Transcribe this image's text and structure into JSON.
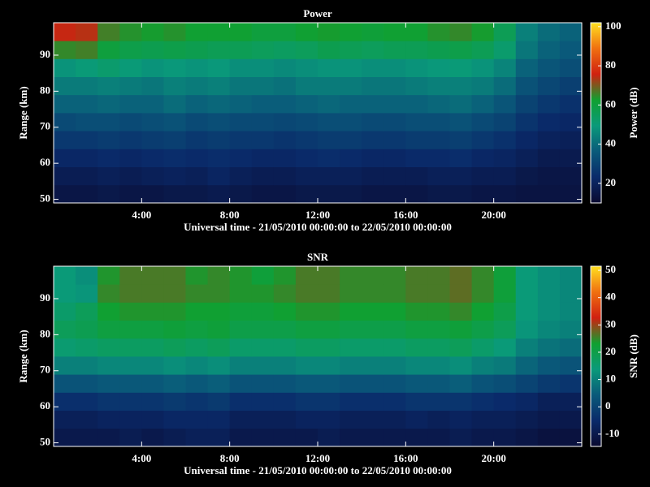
{
  "chart_data": [
    {
      "type": "heatmap",
      "title": "Power",
      "xlabel": "Universal time - 21/05/2010 00:00:00 to 22/05/2010 00:00:00",
      "ylabel": "Range (km)",
      "colorbar_label": "Power (dB)",
      "xbins": [
        0,
        1,
        2,
        3,
        4,
        5,
        6,
        7,
        8,
        9,
        10,
        11,
        12,
        13,
        14,
        15,
        16,
        17,
        18,
        19,
        20,
        21,
        22,
        23,
        24
      ],
      "ybins": [
        49,
        54,
        59,
        64,
        69,
        74,
        79,
        84,
        89,
        94,
        99
      ],
      "xlim": [
        0,
        24
      ],
      "xticks": [
        {
          "value": 4,
          "label": "4:00"
        },
        {
          "value": 8,
          "label": "8:00"
        },
        {
          "value": 12,
          "label": "12:00"
        },
        {
          "value": 16,
          "label": "16:00"
        },
        {
          "value": 20,
          "label": "20:00"
        }
      ],
      "ylim": [
        49,
        99
      ],
      "yticks": [
        50,
        60,
        70,
        80,
        90
      ],
      "zlim": [
        10,
        102
      ],
      "zticks": [
        20,
        40,
        60,
        80,
        100
      ],
      "colormap": [
        "#0a0a30",
        "#0a2a6a",
        "#0a5a7a",
        "#0a9a7a",
        "#10a030",
        "#d02010",
        "#f07010",
        "#ffe020"
      ],
      "z": [
        [
          15,
          15,
          16,
          15,
          15,
          16,
          16,
          17,
          16,
          15,
          15,
          16,
          16,
          16,
          15,
          15,
          15,
          16,
          16,
          15,
          15,
          14,
          14,
          14
        ],
        [
          18,
          18,
          19,
          18,
          19,
          20,
          19,
          21,
          19,
          18,
          18,
          19,
          19,
          19,
          18,
          18,
          18,
          19,
          19,
          18,
          18,
          16,
          15,
          15
        ],
        [
          22,
          22,
          23,
          22,
          23,
          24,
          23,
          24,
          23,
          22,
          22,
          23,
          24,
          23,
          22,
          22,
          23,
          23,
          24,
          22,
          21,
          19,
          17,
          17
        ],
        [
          27,
          27,
          28,
          27,
          28,
          29,
          27,
          28,
          27,
          27,
          26,
          27,
          28,
          28,
          27,
          27,
          28,
          28,
          29,
          27,
          25,
          22,
          20,
          19
        ],
        [
          32,
          33,
          33,
          32,
          33,
          34,
          32,
          33,
          32,
          32,
          31,
          32,
          33,
          33,
          32,
          32,
          33,
          33,
          34,
          32,
          30,
          26,
          23,
          22
        ],
        [
          38,
          38,
          39,
          38,
          38,
          40,
          38,
          39,
          38,
          37,
          37,
          38,
          39,
          38,
          38,
          38,
          38,
          39,
          40,
          38,
          35,
          30,
          27,
          25
        ],
        [
          43,
          43,
          44,
          43,
          42,
          44,
          43,
          44,
          42,
          42,
          41,
          43,
          43,
          43,
          42,
          42,
          43,
          44,
          44,
          43,
          40,
          34,
          31,
          29
        ],
        [
          48,
          50,
          52,
          50,
          48,
          49,
          48,
          49,
          47,
          47,
          46,
          47,
          48,
          48,
          47,
          47,
          48,
          49,
          50,
          48,
          45,
          38,
          35,
          33
        ],
        [
          65,
          66,
          60,
          58,
          57,
          58,
          57,
          56,
          56,
          55,
          54,
          55,
          57,
          56,
          55,
          56,
          56,
          57,
          58,
          56,
          52,
          42,
          38,
          36
        ],
        [
          75,
          74,
          66,
          64,
          63,
          64,
          62,
          62,
          62,
          60,
          60,
          62,
          63,
          62,
          61,
          62,
          62,
          64,
          65,
          63,
          56,
          44,
          40,
          38
        ]
      ]
    },
    {
      "type": "heatmap",
      "title": "SNR",
      "xlabel": "Universal time - 21/05/2010 00:00:00 to 22/05/2010 00:00:00",
      "ylabel": "Range (km)",
      "colorbar_label": "SNR (dB)",
      "xbins": [
        0,
        1,
        2,
        3,
        4,
        5,
        6,
        7,
        8,
        9,
        10,
        11,
        12,
        13,
        14,
        15,
        16,
        17,
        18,
        19,
        20,
        21,
        22,
        23,
        24
      ],
      "ybins": [
        49,
        54,
        59,
        64,
        69,
        74,
        79,
        84,
        89,
        94,
        99
      ],
      "xlim": [
        0,
        24
      ],
      "xticks": [
        {
          "value": 4,
          "label": "4:00"
        },
        {
          "value": 8,
          "label": "8:00"
        },
        {
          "value": 12,
          "label": "12:00"
        },
        {
          "value": 16,
          "label": "16:00"
        },
        {
          "value": 20,
          "label": "20:00"
        }
      ],
      "ylim": [
        49,
        99
      ],
      "yticks": [
        50,
        60,
        70,
        80,
        90
      ],
      "zlim": [
        -14.5,
        51.5
      ],
      "zticks": [
        -10,
        0,
        10,
        20,
        30,
        40,
        50
      ],
      "colormap": [
        "#0a0a30",
        "#0a2a6a",
        "#0a5a7a",
        "#0a9a7a",
        "#10a030",
        "#d02010",
        "#f07010",
        "#ffe020"
      ],
      "z": [
        [
          -10,
          -10,
          -10,
          -9,
          -10,
          -9,
          -8,
          -8,
          -10,
          -10,
          -10,
          -10,
          -9,
          -10,
          -10,
          -10,
          -10,
          -10,
          -9,
          -10,
          -10,
          -11,
          -12,
          -12
        ],
        [
          -8,
          -8,
          -7,
          -7,
          -7,
          -6,
          -6,
          -6,
          -8,
          -8,
          -8,
          -7,
          -7,
          -8,
          -8,
          -8,
          -7,
          -8,
          -7,
          -8,
          -8,
          -9,
          -10,
          -10
        ],
        [
          -4,
          -4,
          -3,
          -3,
          -3,
          -2,
          -3,
          -2,
          -4,
          -4,
          -4,
          -3,
          -3,
          -4,
          -4,
          -4,
          -3,
          -3,
          -3,
          -4,
          -5,
          -6,
          -8,
          -8
        ],
        [
          3,
          3,
          4,
          4,
          4,
          5,
          4,
          5,
          3,
          3,
          3,
          4,
          4,
          3,
          3,
          3,
          4,
          4,
          5,
          3,
          2,
          0,
          -2,
          -3
        ],
        [
          10,
          10,
          11,
          11,
          11,
          12,
          11,
          12,
          10,
          10,
          10,
          11,
          11,
          10,
          10,
          10,
          11,
          11,
          12,
          10,
          9,
          6,
          4,
          3
        ],
        [
          15,
          16,
          17,
          17,
          17,
          18,
          17,
          18,
          16,
          16,
          16,
          17,
          17,
          16,
          16,
          16,
          17,
          17,
          18,
          16,
          14,
          10,
          8,
          7
        ],
        [
          18,
          19,
          21,
          21,
          21,
          22,
          21,
          22,
          20,
          20,
          20,
          21,
          21,
          20,
          20,
          20,
          21,
          21,
          22,
          20,
          18,
          13,
          11,
          10
        ],
        [
          16,
          18,
          23,
          24,
          24,
          24,
          23,
          23,
          22,
          22,
          23,
          24,
          24,
          23,
          23,
          23,
          24,
          24,
          25,
          23,
          20,
          14,
          12,
          11
        ],
        [
          14,
          13,
          25,
          26,
          26,
          26,
          25,
          25,
          24,
          24,
          25,
          26,
          26,
          25,
          25,
          25,
          26,
          26,
          27,
          25,
          22,
          14,
          12,
          11
        ],
        [
          14,
          12,
          24,
          26,
          26,
          26,
          24,
          25,
          24,
          22,
          24,
          26,
          26,
          25,
          25,
          25,
          26,
          26,
          27,
          25,
          22,
          14,
          12,
          11
        ]
      ]
    }
  ]
}
